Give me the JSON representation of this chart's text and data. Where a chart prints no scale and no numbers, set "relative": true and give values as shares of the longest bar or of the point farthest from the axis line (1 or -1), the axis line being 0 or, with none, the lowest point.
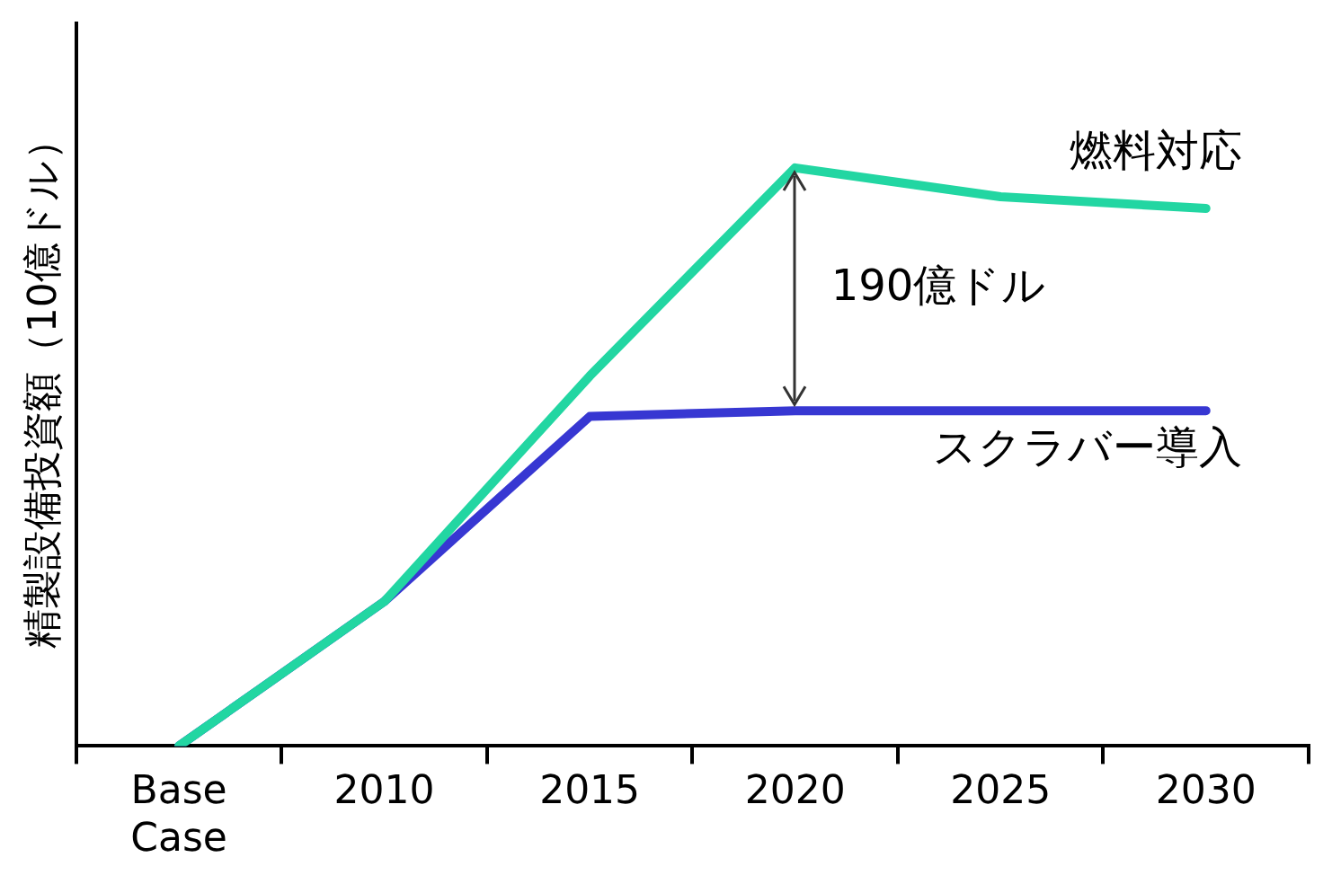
{
  "chart_data": {
    "type": "line",
    "relative": true,
    "ylabel": "精製設備投資額（10億ドル）",
    "categories": [
      "Base Case",
      "2010",
      "2015",
      "2020",
      "2025",
      "2030"
    ],
    "series": [
      {
        "name": "燃料対応",
        "color": "#22d6a2",
        "values": [
          0,
          0.25,
          0.64,
          1,
          0.95,
          0.93
        ]
      },
      {
        "name": "スクラバー導入",
        "color": "#3737d2",
        "values": [
          0,
          0.25,
          0.57,
          0.58,
          0.58,
          0.58
        ]
      }
    ],
    "annotations": [
      "190億ドル"
    ],
    "grid": false,
    "legend": false,
    "marker": "none",
    "line_style": "solid"
  }
}
